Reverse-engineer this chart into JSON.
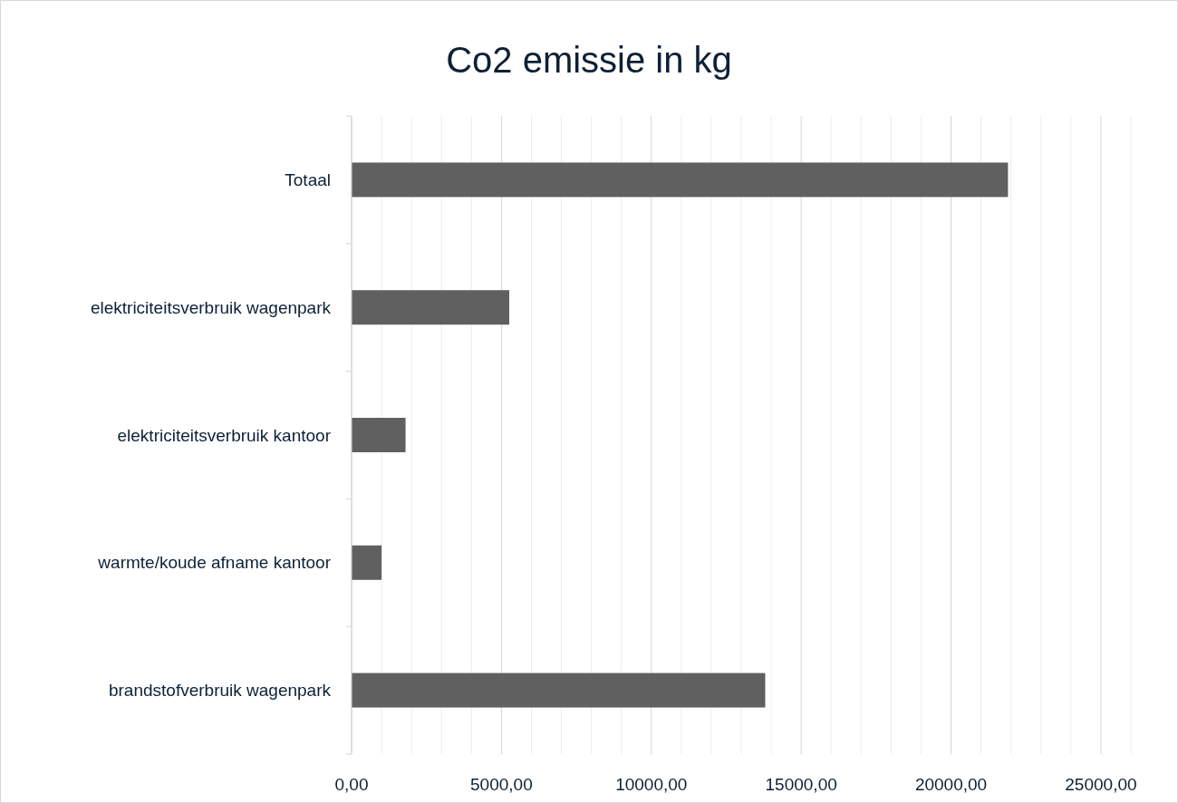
{
  "chart_data": {
    "type": "bar",
    "orientation": "horizontal",
    "title": "Co2 emissie in kg",
    "categories": [
      "Totaal",
      "elektriciteitsverbruik wagenpark",
      "elektriciteitsverbruik kantoor",
      "warmte/koude afname kantoor",
      "brandstofverbruik wagenpark"
    ],
    "values": [
      21900,
      5260,
      1800,
      1000,
      13800
    ],
    "color": "#606060",
    "xlim": [
      0,
      26000
    ],
    "xticks": [
      {
        "value": 0,
        "label": "0,00"
      },
      {
        "value": 1000,
        "label": null
      },
      {
        "value": 2000,
        "label": null
      },
      {
        "value": 3000,
        "label": null
      },
      {
        "value": 4000,
        "label": null
      },
      {
        "value": 5000,
        "label": "5000,00"
      },
      {
        "value": 6000,
        "label": null
      },
      {
        "value": 7000,
        "label": null
      },
      {
        "value": 8000,
        "label": null
      },
      {
        "value": 9000,
        "label": null
      },
      {
        "value": 10000,
        "label": "10000,00"
      },
      {
        "value": 11000,
        "label": null
      },
      {
        "value": 12000,
        "label": null
      },
      {
        "value": 13000,
        "label": null
      },
      {
        "value": 14000,
        "label": null
      },
      {
        "value": 15000,
        "label": "15000,00"
      },
      {
        "value": 16000,
        "label": null
      },
      {
        "value": 17000,
        "label": null
      },
      {
        "value": 18000,
        "label": null
      },
      {
        "value": 19000,
        "label": null
      },
      {
        "value": 20000,
        "label": "20000,00"
      },
      {
        "value": 21000,
        "label": null
      },
      {
        "value": 22000,
        "label": null
      },
      {
        "value": 23000,
        "label": null
      },
      {
        "value": 24000,
        "label": null
      },
      {
        "value": 25000,
        "label": "25000,00"
      },
      {
        "value": 26000,
        "label": null
      }
    ],
    "grid": "x"
  }
}
